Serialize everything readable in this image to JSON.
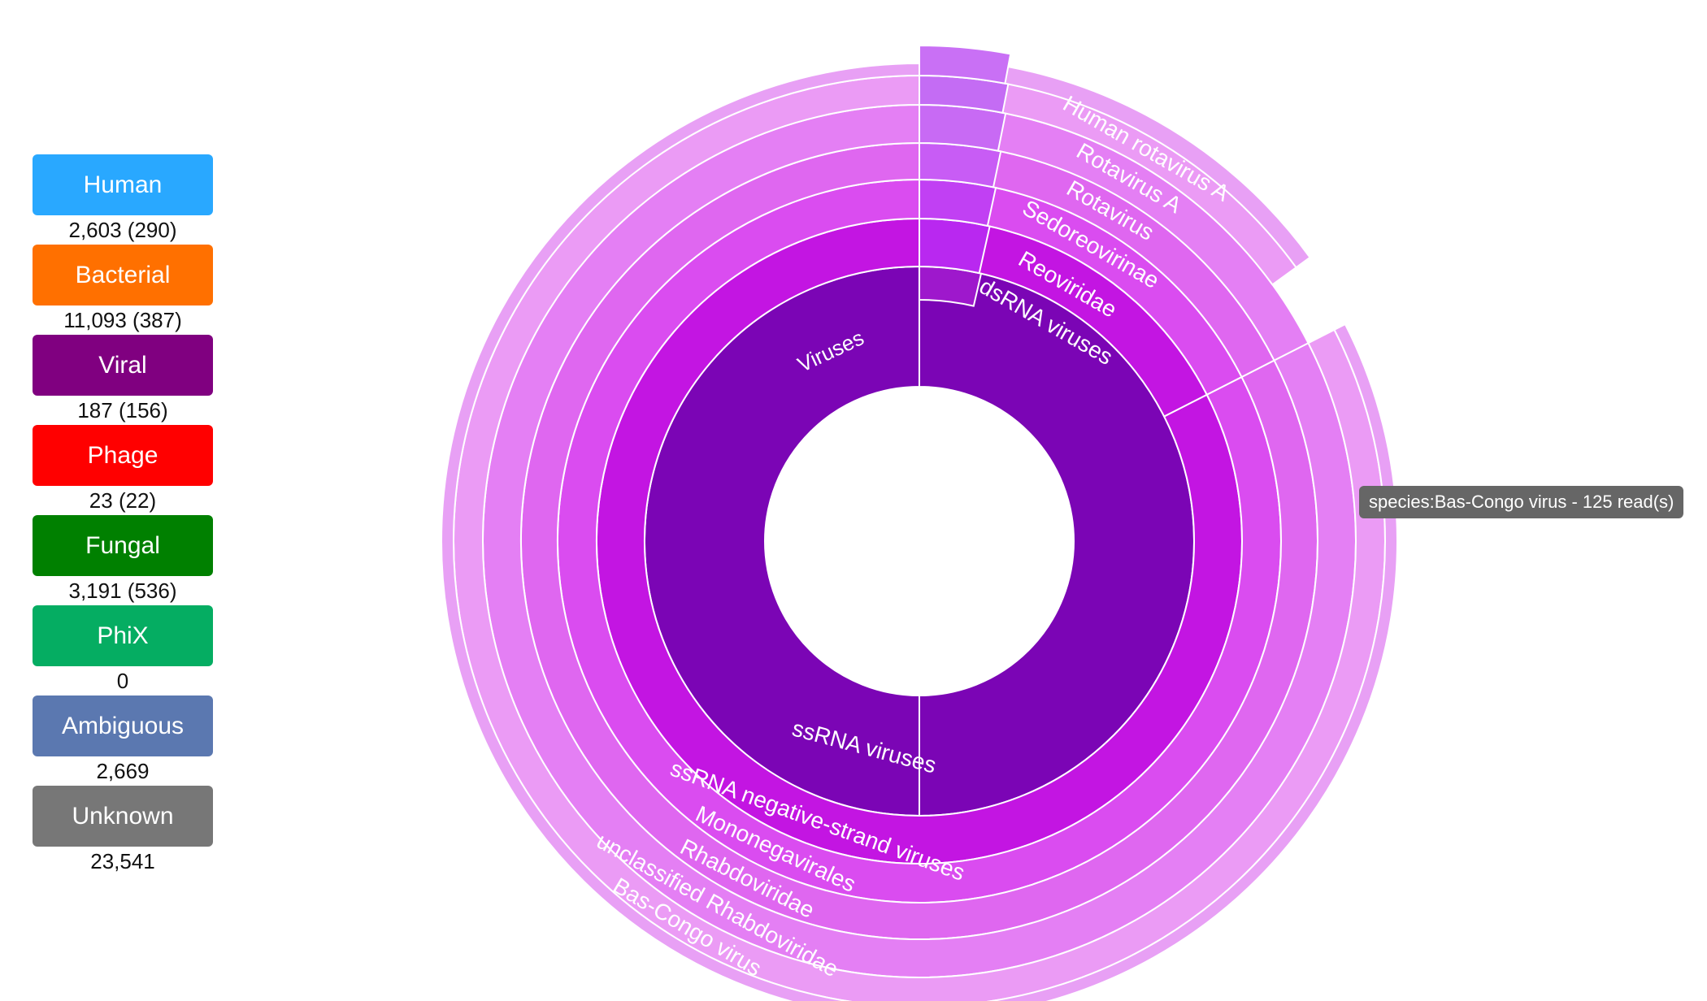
{
  "categories": [
    {
      "label": "Human",
      "count": "2,603 (290)",
      "color": "#29A8FF"
    },
    {
      "label": "Bacterial",
      "count": "11,093 (387)",
      "color": "#FF7000"
    },
    {
      "label": "Viral",
      "count": "187 (156)",
      "color": "#800080"
    },
    {
      "label": "Phage",
      "count": "23 (22)",
      "color": "#FF0000"
    },
    {
      "label": "Fungal",
      "count": "3,191 (536)",
      "color": "#008000"
    },
    {
      "label": "PhiX",
      "count": "0",
      "color": "#05AD62"
    },
    {
      "label": "Ambiguous",
      "count": "2,669",
      "color": "#5B78B0"
    },
    {
      "label": "Unknown",
      "count": "23,541",
      "color": "#777777"
    }
  ],
  "tooltip": "species:Bas-Congo virus - 125 read(s)",
  "chart_data": {
    "type": "sunburst",
    "root": "Viruses",
    "levels": [
      "superkingdom",
      "group",
      "subgroup",
      "order",
      "family",
      "subfamily/genus",
      "genus",
      "species"
    ],
    "branches": [
      {
        "name": "dsRNA viruses",
        "path": [
          "Viruses",
          "dsRNA viruses",
          "Reoviridae",
          "Sedoreovirinae",
          "Rotavirus",
          "Rotavirus A",
          "Human rotavirus A"
        ]
      },
      {
        "name": "ssRNA viruses",
        "path": [
          "Viruses",
          "ssRNA viruses",
          "ssRNA negative-strand viruses",
          "Mononegavirales",
          "Rhabdoviridae",
          "unclassified Rhabdoviridae",
          "Bas-Congo virus"
        ],
        "reads": 125
      }
    ],
    "palette": [
      "#7B05B5",
      "#C315E2",
      "#DA4CF0",
      "#DF67F0",
      "#E47FF4",
      "#EB9BF5",
      "#E8A0F5"
    ]
  }
}
